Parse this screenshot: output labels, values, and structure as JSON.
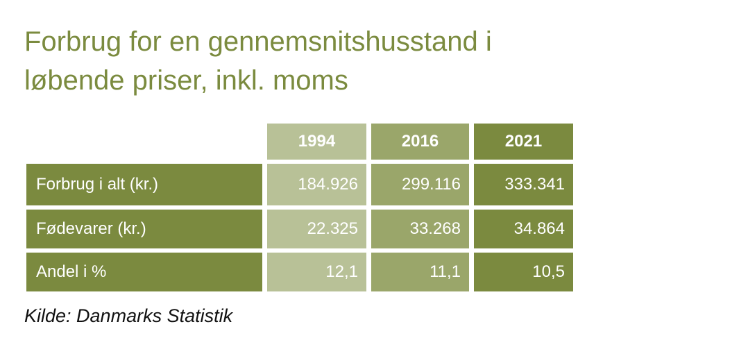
{
  "header": {
    "title_lines": [
      "Forbrug for en gennemsnitshusstand i",
      "løbende priser, inkl. moms"
    ]
  },
  "table": {
    "columns": [
      "1994",
      "2016",
      "2021"
    ],
    "rows": [
      [
        "Forbrug i alt (kr.)",
        "184.926",
        "299.116",
        "333.341"
      ],
      [
        "Fødevarer (kr.)",
        "22.325",
        "33.268",
        "34.864"
      ],
      [
        "Andel i %",
        "12,1",
        "11,1",
        "10,5"
      ]
    ]
  },
  "source": "Kilde: Danmarks Statistik"
}
